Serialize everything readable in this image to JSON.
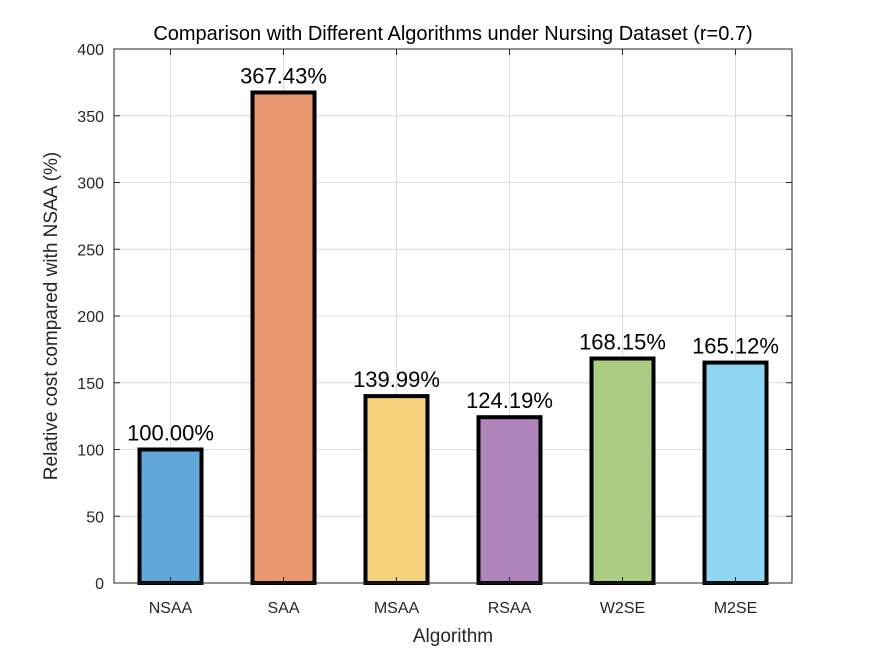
{
  "chart_data": {
    "type": "bar",
    "title": "Comparison with Different Algorithms under Nursing Dataset (r=0.7)",
    "xlabel": "Algorithm",
    "ylabel": "Relative cost compared with NSAA (%)",
    "categories": [
      "NSAA",
      "SAA",
      "MSAA",
      "RSAA",
      "W2SE",
      "M2SE"
    ],
    "values": [
      100.0,
      367.43,
      139.99,
      124.19,
      168.15,
      165.12
    ],
    "value_labels": [
      "100.00%",
      "367.43%",
      "139.99%",
      "124.19%",
      "168.15%",
      "165.12%"
    ],
    "colors": [
      "#61a8d9",
      "#e8976f",
      "#f4d17a",
      "#ae84bb",
      "#abcd82",
      "#8fd6f4"
    ],
    "ylim": [
      0,
      400
    ],
    "yticks": [
      0,
      50,
      100,
      150,
      200,
      250,
      300,
      350,
      400
    ],
    "grid": true
  }
}
